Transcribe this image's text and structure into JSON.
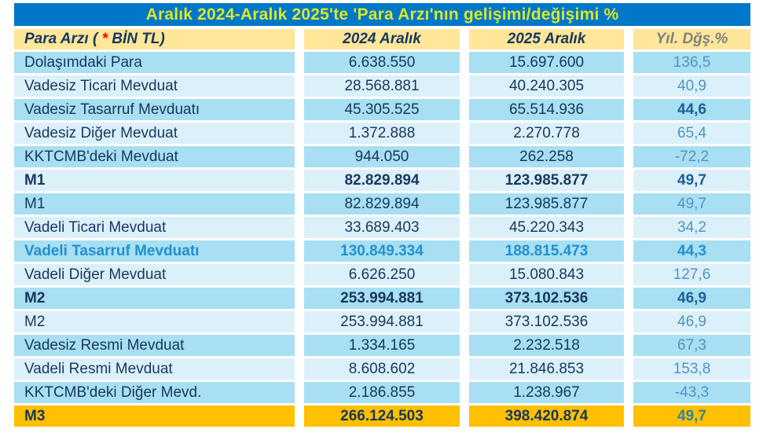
{
  "title": "Aralık 2024-Aralık 2025'te 'Para Arzı'nın gelişimi/değişimi %",
  "table": {
    "header": {
      "col1_prefix": "Para Arzı ( ",
      "col1_star": "*",
      "col1_suffix": " BİN TL)",
      "col2": "2024 Aralık",
      "col3": "2025 Aralık",
      "col4": "Yıl. Dğş.%"
    },
    "rows": [
      {
        "label": "Dolaşımdaki Para",
        "dec2024": "6.638.550",
        "dec2025": "15.697.600",
        "pct": "136,5",
        "bg": "medium",
        "emphasis": "none",
        "pct_bold": false
      },
      {
        "label": "Vadesiz Ticari Mevduat",
        "dec2024": "28.568.881",
        "dec2025": "40.240.305",
        "pct": "40,9",
        "bg": "light",
        "emphasis": "none",
        "pct_bold": false
      },
      {
        "label": "Vadesiz Tasarruf Mevduatı",
        "dec2024": "45.305.525",
        "dec2025": "65.514.936",
        "pct": "44,6",
        "bg": "medium",
        "emphasis": "none",
        "pct_bold": true
      },
      {
        "label": "Vadesiz Diğer Mevduat",
        "dec2024": "1.372.888",
        "dec2025": "2.270.778",
        "pct": "65,4",
        "bg": "light",
        "emphasis": "none",
        "pct_bold": false
      },
      {
        "label": "KKTCMB'deki Mevduat",
        "dec2024": "944.050",
        "dec2025": "262.258",
        "pct": "-72,2",
        "bg": "medium",
        "emphasis": "none",
        "pct_bold": false
      },
      {
        "label": "M1",
        "dec2024": "82.829.894",
        "dec2025": "123.985.877",
        "pct": "49,7",
        "bg": "light",
        "emphasis": "bold",
        "pct_bold": true
      },
      {
        "label": "M1",
        "dec2024": "82.829.894",
        "dec2025": "123.985.877",
        "pct": "49,7",
        "bg": "medium",
        "emphasis": "none",
        "pct_bold": false
      },
      {
        "label": "Vadeli Ticari Mevduat",
        "dec2024": "33.689.403",
        "dec2025": "45.220.343",
        "pct": "34,2",
        "bg": "light",
        "emphasis": "none",
        "pct_bold": false
      },
      {
        "label": "Vadeli Tasarruf Mevduatı",
        "dec2024": "130.849.334",
        "dec2025": "188.815.473",
        "pct": "44,3",
        "bg": "medium",
        "emphasis": "blue",
        "pct_bold": true
      },
      {
        "label": "Vadeli Diğer Mevduat",
        "dec2024": "6.626.250",
        "dec2025": "15.080.843",
        "pct": "127,6",
        "bg": "light",
        "emphasis": "none",
        "pct_bold": false
      },
      {
        "label": "M2",
        "dec2024": "253.994.881",
        "dec2025": "373.102.536",
        "pct": "46,9",
        "bg": "medium",
        "emphasis": "bold",
        "pct_bold": true
      },
      {
        "label": "M2",
        "dec2024": "253.994.881",
        "dec2025": "373.102.536",
        "pct": "46,9",
        "bg": "light",
        "emphasis": "none",
        "pct_bold": false
      },
      {
        "label": "Vadesiz Resmi Mevduat",
        "dec2024": "1.334.165",
        "dec2025": "2.232.518",
        "pct": "67,3",
        "bg": "medium",
        "emphasis": "none",
        "pct_bold": false
      },
      {
        "label": "Vadeli Resmi Mevduat",
        "dec2024": "8.608.602",
        "dec2025": "21.846.853",
        "pct": "153,8",
        "bg": "light",
        "emphasis": "none",
        "pct_bold": false
      },
      {
        "label": "KKTCMB'deki Diğer Mevd.",
        "dec2024": "2.186.855",
        "dec2025": "1.238.967",
        "pct": "-43,3",
        "bg": "medium",
        "emphasis": "none",
        "pct_bold": false
      },
      {
        "label": "M3",
        "dec2024": "266.124.503",
        "dec2025": "398.420.874",
        "pct": "49,7",
        "bg": "gold",
        "emphasis": "bold",
        "pct_bold": true
      }
    ]
  },
  "colors": {
    "title_bar": "#0077C8",
    "title_text": "#DCE826",
    "header_bg": "#FFE699",
    "header_text": "#17375E",
    "header_pct_text": "#808080",
    "row_medium": "#A8DFF2",
    "row_light": "#DCF0FA",
    "text_navy": "#17375E",
    "pct_regular": "#4D94C4",
    "pct_bold": "#1C5F97",
    "blue_row_text": "#2191D0",
    "m3_bg": "#FFC000",
    "m3_pct": "#31849B",
    "star_red": "#FF0000"
  },
  "chart_data": {
    "type": "table",
    "title": "Aralık 2024-Aralık 2025'te 'Para Arzı'nın gelişimi/değişimi %",
    "columns": [
      "Para Arzı ( * BİN TL)",
      "2024 Aralık",
      "2025 Aralık",
      "Yıl. Dğş.%"
    ],
    "rows": [
      [
        "Dolaşımdaki Para",
        "6.638.550",
        "15.697.600",
        "136,5"
      ],
      [
        "Vadesiz Ticari Mevduat",
        "28.568.881",
        "40.240.305",
        "40,9"
      ],
      [
        "Vadesiz Tasarruf Mevduatı",
        "45.305.525",
        "65.514.936",
        "44,6"
      ],
      [
        "Vadesiz Diğer Mevduat",
        "1.372.888",
        "2.270.778",
        "65,4"
      ],
      [
        "KKTCMB'deki Mevduat",
        "944.050",
        "262.258",
        "-72,2"
      ],
      [
        "M1",
        "82.829.894",
        "123.985.877",
        "49,7"
      ],
      [
        "M1",
        "82.829.894",
        "123.985.877",
        "49,7"
      ],
      [
        "Vadeli Ticari Mevduat",
        "33.689.403",
        "45.220.343",
        "34,2"
      ],
      [
        "Vadeli Tasarruf Mevduatı",
        "130.849.334",
        "188.815.473",
        "44,3"
      ],
      [
        "Vadeli Diğer Mevduat",
        "6.626.250",
        "15.080.843",
        "127,6"
      ],
      [
        "M2",
        "253.994.881",
        "373.102.536",
        "46,9"
      ],
      [
        "M2",
        "253.994.881",
        "373.102.536",
        "46,9"
      ],
      [
        "Vadesiz Resmi Mevduat",
        "1.334.165",
        "2.232.518",
        "67,3"
      ],
      [
        "Vadeli Resmi Mevduat",
        "8.608.602",
        "21.846.853",
        "153,8"
      ],
      [
        "KKTCMB'deki Diğer Mevd.",
        "2.186.855",
        "1.238.967",
        "-43,3"
      ],
      [
        "M3",
        "266.124.503",
        "398.420.874",
        "49,7"
      ]
    ]
  }
}
